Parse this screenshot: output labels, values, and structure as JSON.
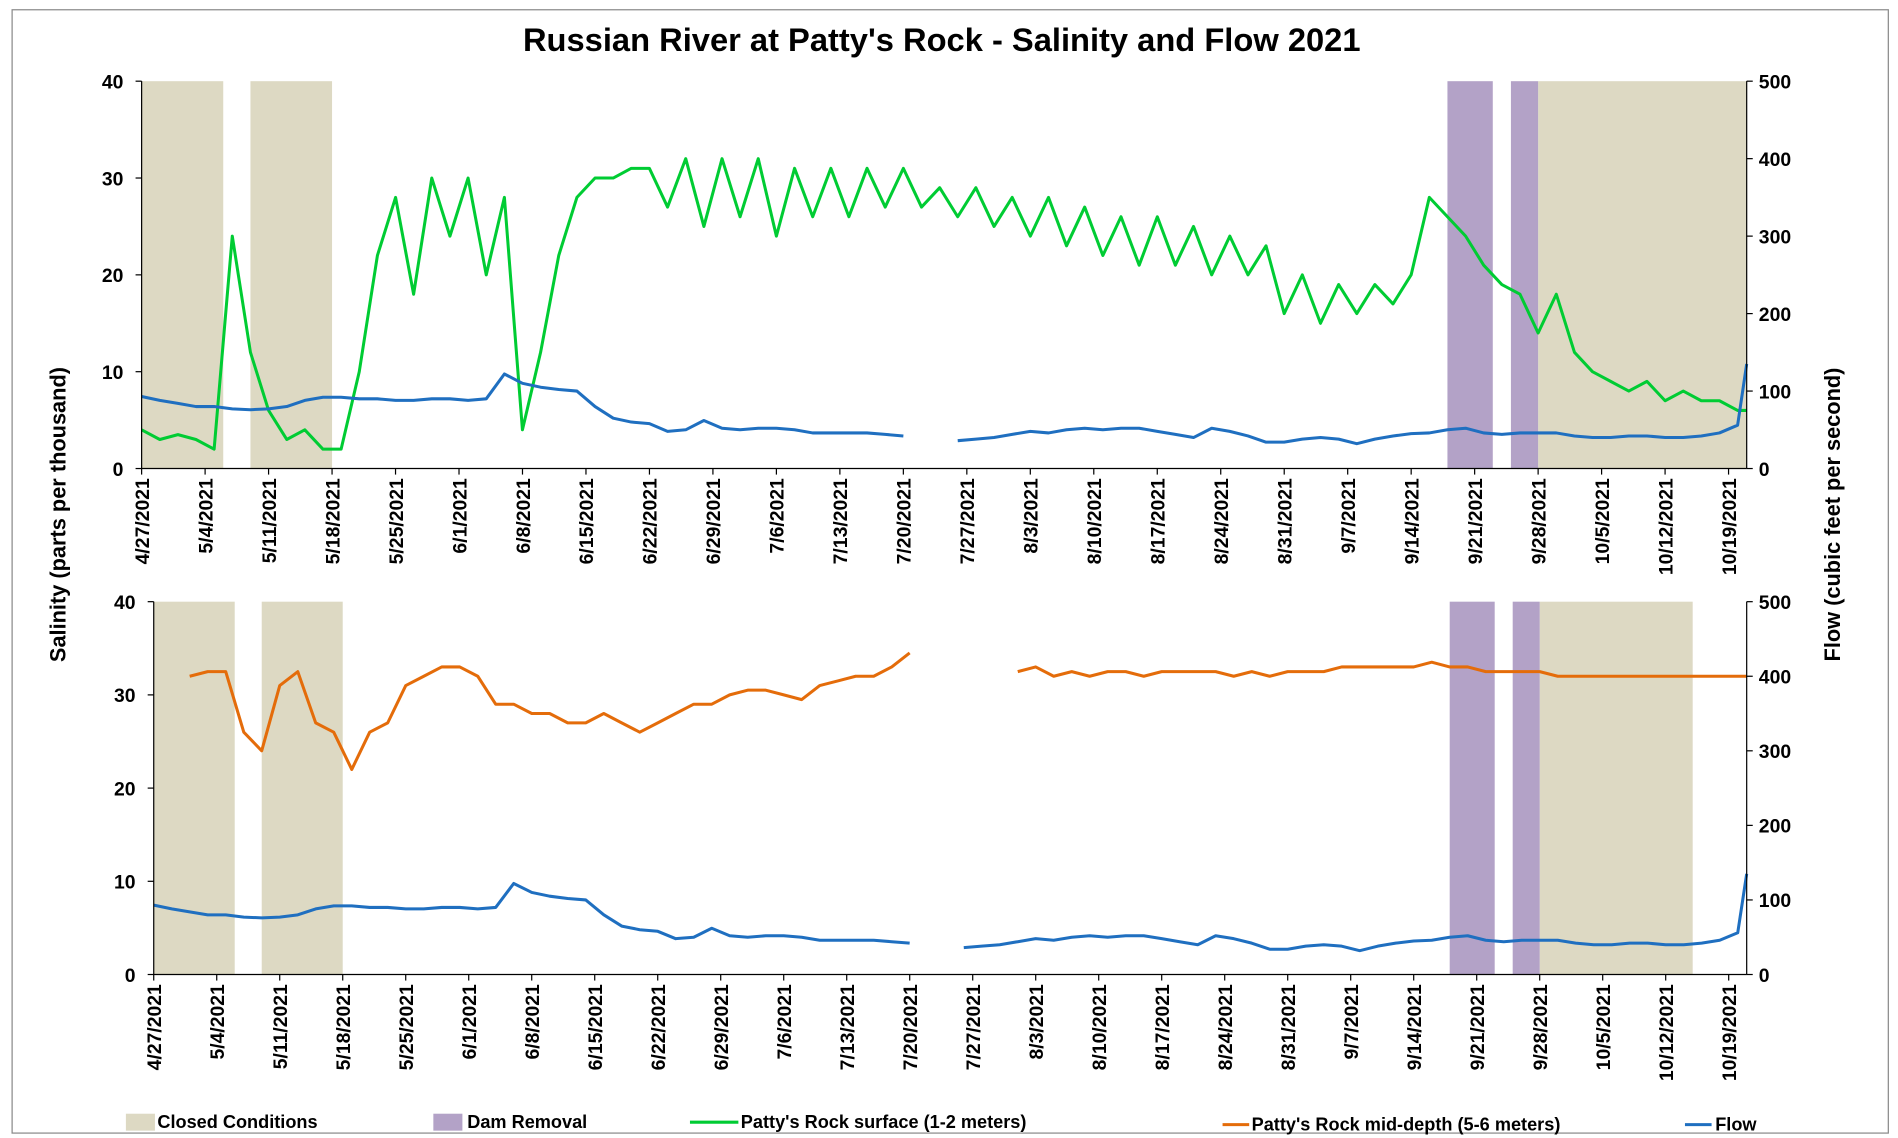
{
  "title": "Russian River at Patty's Rock - Salinity and Flow 2021",
  "ylabel": "Salinity (parts per thousand)",
  "y2label": "Flow (cubic feet per second)",
  "chart_data": [
    {
      "type": "line",
      "x": [
        "4/27/2021",
        "4/29/2021",
        "5/1/2021",
        "5/3/2021",
        "5/5/2021",
        "5/7/2021",
        "5/9/2021",
        "5/11/2021",
        "5/13/2021",
        "5/15/2021",
        "5/17/2021",
        "5/19/2021",
        "5/21/2021",
        "5/23/2021",
        "5/25/2021",
        "5/27/2021",
        "5/29/2021",
        "5/31/2021",
        "6/2/2021",
        "6/4/2021",
        "6/6/2021",
        "6/8/2021",
        "6/10/2021",
        "6/12/2021",
        "6/14/2021",
        "6/16/2021",
        "6/18/2021",
        "6/20/2021",
        "6/22/2021",
        "6/24/2021",
        "6/26/2021",
        "6/28/2021",
        "6/30/2021",
        "7/2/2021",
        "7/4/2021",
        "7/6/2021",
        "7/8/2021",
        "7/10/2021",
        "7/12/2021",
        "7/14/2021",
        "7/16/2021",
        "7/18/2021",
        "7/20/2021",
        "7/22/2021",
        "7/24/2021",
        "7/26/2021",
        "7/28/2021",
        "7/30/2021",
        "8/1/2021",
        "8/3/2021",
        "8/5/2021",
        "8/7/2021",
        "8/9/2021",
        "8/11/2021",
        "8/13/2021",
        "8/15/2021",
        "8/17/2021",
        "8/19/2021",
        "8/21/2021",
        "8/23/2021",
        "8/25/2021",
        "8/27/2021",
        "8/29/2021",
        "8/31/2021",
        "9/2/2021",
        "9/4/2021",
        "9/6/2021",
        "9/8/2021",
        "9/10/2021",
        "9/12/2021",
        "9/14/2021",
        "9/16/2021",
        "9/18/2021",
        "9/20/2021",
        "9/22/2021",
        "9/24/2021",
        "9/26/2021",
        "9/28/2021",
        "9/30/2021",
        "10/2/2021",
        "10/4/2021",
        "10/6/2021",
        "10/8/2021",
        "10/10/2021",
        "10/12/2021",
        "10/14/2021",
        "10/16/2021",
        "10/18/2021",
        "10/20/2021",
        "10/21/2021"
      ],
      "series": [
        {
          "name": "Patty's Rock surface (1-2 meters)",
          "color": "#00cc33",
          "values": [
            4,
            3,
            3.5,
            3,
            2,
            24,
            12,
            6,
            3,
            4,
            2,
            2,
            10,
            22,
            28,
            18,
            30,
            24,
            30,
            20,
            28,
            4,
            12,
            22,
            28,
            30,
            30,
            31,
            31,
            27,
            32,
            25,
            32,
            26,
            32,
            24,
            31,
            26,
            31,
            26,
            31,
            27,
            31,
            27,
            29,
            26,
            29,
            25,
            28,
            24,
            28,
            23,
            27,
            22,
            26,
            21,
            26,
            21,
            25,
            20,
            24,
            20,
            23,
            16,
            20,
            15,
            19,
            16,
            19,
            17,
            20,
            28,
            26,
            24,
            21,
            19,
            18,
            14,
            18,
            12,
            10,
            9,
            8,
            9,
            7,
            8,
            7,
            7,
            6,
            6
          ]
        },
        {
          "color": "#1f6fc0",
          "axis": "y2",
          "values": [
            93,
            88,
            84,
            80,
            80,
            77,
            76,
            77,
            80,
            88,
            92,
            92,
            90,
            90,
            88,
            88,
            90,
            90,
            88,
            90,
            122,
            110,
            105,
            102,
            100,
            80,
            65,
            60,
            58,
            48,
            50,
            62,
            52,
            50,
            52,
            52,
            50,
            46,
            46,
            46,
            46,
            44,
            42,
            null,
            null,
            36,
            38,
            40,
            44,
            48,
            46,
            50,
            52,
            50,
            52,
            52,
            48,
            44,
            40,
            52,
            48,
            42,
            34,
            34,
            38,
            40,
            38,
            32,
            38,
            42,
            45,
            46,
            50,
            52,
            46,
            44,
            46,
            46,
            46,
            42,
            40,
            40,
            42,
            42,
            40,
            40,
            42,
            46,
            56,
            135
          ]
        }
      ],
      "bands": [
        {
          "name": "Closed Conditions",
          "color": "#ddd9c3",
          "ranges": [
            [
              "4/27/2021",
              "5/6/2021"
            ],
            [
              "5/9/2021",
              "5/18/2021"
            ],
            [
              "9/28/2021",
              "10/21/2021"
            ]
          ]
        },
        {
          "name": "Dam Removal",
          "color": "#b3a2c7",
          "ranges": [
            [
              "9/18/2021",
              "9/23/2021"
            ],
            [
              "9/25/2021",
              "9/28/2021"
            ]
          ]
        }
      ],
      "xlim": [
        "4/27/2021",
        "10/21/2021"
      ],
      "xticks": [
        "4/27/2021",
        "5/4/2021",
        "5/11/2021",
        "5/18/2021",
        "5/25/2021",
        "6/1/2021",
        "6/8/2021",
        "6/15/2021",
        "6/22/2021",
        "6/29/2021",
        "7/6/2021",
        "7/13/2021",
        "7/20/2021",
        "7/27/2021",
        "8/3/2021",
        "8/10/2021",
        "8/17/2021",
        "8/24/2021",
        "8/31/2021",
        "9/7/2021",
        "9/14/2021",
        "9/21/2021",
        "9/28/2021",
        "10/5/2021",
        "10/12/2021",
        "10/19/2021"
      ],
      "ylim": [
        0,
        40
      ],
      "yticks": [
        0,
        10,
        20,
        30,
        40
      ],
      "y2lim": [
        0,
        500
      ],
      "y2ticks": [
        0,
        100,
        200,
        300,
        400,
        500
      ]
    },
    {
      "type": "line",
      "x": [
        "4/27/2021",
        "4/29/2021",
        "5/1/2021",
        "5/3/2021",
        "5/5/2021",
        "5/7/2021",
        "5/9/2021",
        "5/11/2021",
        "5/13/2021",
        "5/15/2021",
        "5/17/2021",
        "5/19/2021",
        "5/21/2021",
        "5/23/2021",
        "5/25/2021",
        "5/27/2021",
        "5/29/2021",
        "5/31/2021",
        "6/2/2021",
        "6/4/2021",
        "6/6/2021",
        "6/8/2021",
        "6/10/2021",
        "6/12/2021",
        "6/14/2021",
        "6/16/2021",
        "6/18/2021",
        "6/20/2021",
        "6/22/2021",
        "6/24/2021",
        "6/26/2021",
        "6/28/2021",
        "6/30/2021",
        "7/2/2021",
        "7/4/2021",
        "7/6/2021",
        "7/8/2021",
        "7/10/2021",
        "7/12/2021",
        "7/14/2021",
        "7/16/2021",
        "7/18/2021",
        "7/20/2021",
        "7/22/2021",
        "7/24/2021",
        "7/26/2021",
        "7/28/2021",
        "7/30/2021",
        "8/1/2021",
        "8/3/2021",
        "8/5/2021",
        "8/7/2021",
        "8/9/2021",
        "8/11/2021",
        "8/13/2021",
        "8/15/2021",
        "8/17/2021",
        "8/19/2021",
        "8/21/2021",
        "8/23/2021",
        "8/25/2021",
        "8/27/2021",
        "8/29/2021",
        "8/31/2021",
        "9/2/2021",
        "9/4/2021",
        "9/6/2021",
        "9/8/2021",
        "9/10/2021",
        "9/12/2021",
        "9/14/2021",
        "9/16/2021",
        "9/18/2021",
        "9/20/2021",
        "9/22/2021",
        "9/24/2021",
        "9/26/2021",
        "9/28/2021",
        "9/30/2021",
        "10/2/2021",
        "10/4/2021",
        "10/6/2021",
        "10/8/2021",
        "10/10/2021",
        "10/12/2021",
        "10/14/2021",
        "10/16/2021",
        "10/18/2021",
        "10/20/2021",
        "10/21/2021"
      ],
      "series": [
        {
          "name": "Patty's Rock mid-depth (5-6 meters)",
          "color": "#e46c0a",
          "values": [
            null,
            null,
            32,
            32.5,
            32.5,
            26,
            24,
            31,
            32.5,
            27,
            26,
            22,
            26,
            27,
            31,
            32,
            33,
            33,
            32,
            29,
            29,
            28,
            28,
            27,
            27,
            28,
            27,
            26,
            27,
            28,
            29,
            29,
            30,
            30.5,
            30.5,
            30,
            29.5,
            31,
            31.5,
            32,
            32,
            33,
            34.5,
            null,
            null,
            null,
            null,
            null,
            32.5,
            33,
            32,
            32.5,
            32,
            32.5,
            32.5,
            32,
            32.5,
            32.5,
            32.5,
            32.5,
            32,
            32.5,
            32,
            32.5,
            32.5,
            32.5,
            33,
            33,
            33,
            33,
            33,
            33.5,
            33,
            33,
            32.5,
            32.5,
            32.5,
            32.5,
            32,
            32,
            32,
            32,
            32,
            32,
            32,
            32,
            32,
            32,
            32,
            32
          ]
        },
        {
          "name": "Flow",
          "color": "#1f6fc0",
          "axis": "y2",
          "values": [
            93,
            88,
            84,
            80,
            80,
            77,
            76,
            77,
            80,
            88,
            92,
            92,
            90,
            90,
            88,
            88,
            90,
            90,
            88,
            90,
            122,
            110,
            105,
            102,
            100,
            80,
            65,
            60,
            58,
            48,
            50,
            62,
            52,
            50,
            52,
            52,
            50,
            46,
            46,
            46,
            46,
            44,
            42,
            null,
            null,
            36,
            38,
            40,
            44,
            48,
            46,
            50,
            52,
            50,
            52,
            52,
            48,
            44,
            40,
            52,
            48,
            42,
            34,
            34,
            38,
            40,
            38,
            32,
            38,
            42,
            45,
            46,
            50,
            52,
            46,
            44,
            46,
            46,
            46,
            42,
            40,
            40,
            42,
            42,
            40,
            40,
            42,
            46,
            56,
            135
          ]
        }
      ],
      "bands": [
        {
          "color": "#ddd9c3",
          "ranges": [
            [
              "4/27/2021",
              "5/6/2021"
            ],
            [
              "5/9/2021",
              "5/18/2021"
            ],
            [
              "9/28/2021",
              "10/15/2021"
            ]
          ]
        },
        {
          "color": "#b3a2c7",
          "ranges": [
            [
              "9/18/2021",
              "9/23/2021"
            ],
            [
              "9/25/2021",
              "9/28/2021"
            ]
          ]
        }
      ],
      "xlim": [
        "4/27/2021",
        "10/21/2021"
      ],
      "xticks": [
        "4/27/2021",
        "5/4/2021",
        "5/11/2021",
        "5/18/2021",
        "5/25/2021",
        "6/1/2021",
        "6/8/2021",
        "6/15/2021",
        "6/22/2021",
        "6/29/2021",
        "7/6/2021",
        "7/13/2021",
        "7/20/2021",
        "7/27/2021",
        "8/3/2021",
        "8/10/2021",
        "8/17/2021",
        "8/24/2021",
        "8/31/2021",
        "9/7/2021",
        "9/14/2021",
        "9/21/2021",
        "9/28/2021",
        "10/5/2021",
        "10/12/2021",
        "10/19/2021"
      ],
      "ylim": [
        0,
        40
      ],
      "yticks": [
        0,
        10,
        20,
        30,
        40
      ],
      "y2lim": [
        0,
        500
      ],
      "y2ticks": [
        0,
        100,
        200,
        300,
        400,
        500
      ]
    }
  ]
}
